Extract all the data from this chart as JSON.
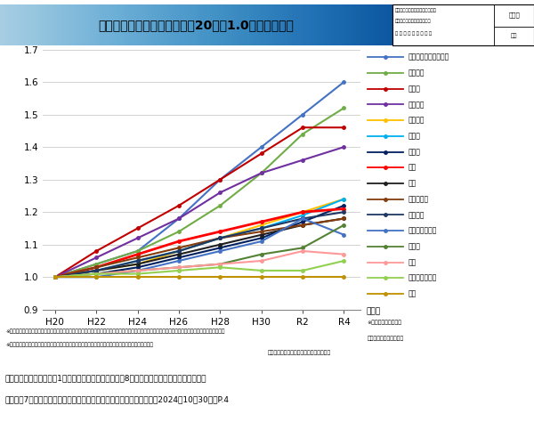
{
  "title": "診療科別医師数の推移（平成20年を1.0とした場合）",
  "x_labels": [
    "H20",
    "H22",
    "H24",
    "H26",
    "H28",
    "H30",
    "R2",
    "R4"
  ],
  "x_values": [
    0,
    1,
    2,
    3,
    4,
    5,
    6,
    7
  ],
  "ylim": [
    0.9,
    1.7
  ],
  "yticks": [
    0.9,
    1.0,
    1.1,
    1.2,
    1.3,
    1.4,
    1.5,
    1.6,
    1.7
  ],
  "series": [
    {
      "name": "リハビリテーション科",
      "color": "#4472C4",
      "lw": 1.5,
      "values": [
        1.0,
        1.04,
        1.08,
        1.18,
        1.3,
        1.4,
        1.5,
        1.6
      ]
    },
    {
      "name": "形成外科",
      "color": "#70AD47",
      "lw": 1.5,
      "values": [
        1.0,
        1.04,
        1.08,
        1.14,
        1.22,
        1.32,
        1.44,
        1.52
      ]
    },
    {
      "name": "麻酔科",
      "color": "#C00000",
      "lw": 1.5,
      "values": [
        1.0,
        1.08,
        1.15,
        1.22,
        1.3,
        1.38,
        1.46,
        1.46
      ]
    },
    {
      "name": "放射線科",
      "color": "#7030A0",
      "lw": 1.5,
      "values": [
        1.0,
        1.06,
        1.12,
        1.18,
        1.26,
        1.32,
        1.36,
        1.4
      ]
    },
    {
      "name": "泌尿器科",
      "color": "#FFC000",
      "lw": 1.5,
      "values": [
        1.0,
        1.02,
        1.04,
        1.08,
        1.12,
        1.16,
        1.2,
        1.24
      ]
    },
    {
      "name": "精神科",
      "color": "#00B0F0",
      "lw": 1.5,
      "values": [
        1.0,
        1.02,
        1.05,
        1.08,
        1.12,
        1.15,
        1.19,
        1.24
      ]
    },
    {
      "name": "皮膚科",
      "color": "#002060",
      "lw": 1.5,
      "values": [
        1.0,
        1.01,
        1.03,
        1.06,
        1.09,
        1.12,
        1.17,
        1.22
      ]
    },
    {
      "name": "総数",
      "color": "#FF0000",
      "lw": 2.0,
      "values": [
        1.0,
        1.03,
        1.07,
        1.11,
        1.14,
        1.17,
        1.2,
        1.21
      ]
    },
    {
      "name": "内科",
      "color": "#1F1F1F",
      "lw": 1.5,
      "values": [
        1.0,
        1.02,
        1.04,
        1.07,
        1.1,
        1.13,
        1.16,
        1.18
      ]
    },
    {
      "name": "脳神経外科",
      "color": "#843C0C",
      "lw": 1.5,
      "values": [
        1.0,
        1.03,
        1.06,
        1.09,
        1.12,
        1.14,
        1.16,
        1.18
      ]
    },
    {
      "name": "整形外科",
      "color": "#1F3864",
      "lw": 1.5,
      "values": [
        1.0,
        1.02,
        1.05,
        1.08,
        1.12,
        1.15,
        1.18,
        1.2
      ]
    },
    {
      "name": "産科・産婦人科",
      "color": "#4472C4",
      "lw": 1.5,
      "values": [
        1.0,
        1.0,
        1.02,
        1.05,
        1.08,
        1.11,
        1.18,
        1.13
      ]
    },
    {
      "name": "小児科",
      "color": "#548235",
      "lw": 1.5,
      "values": [
        1.0,
        1.01,
        1.02,
        1.03,
        1.04,
        1.07,
        1.09,
        1.16
      ]
    },
    {
      "name": "眼科",
      "color": "#FF9999",
      "lw": 1.5,
      "values": [
        1.0,
        1.01,
        1.02,
        1.03,
        1.04,
        1.05,
        1.08,
        1.07
      ]
    },
    {
      "name": "耳鼻いんこう科",
      "color": "#92D050",
      "lw": 1.5,
      "values": [
        1.0,
        1.01,
        1.01,
        1.02,
        1.03,
        1.02,
        1.02,
        1.05
      ]
    },
    {
      "name": "外科",
      "color": "#BF9000",
      "lw": 1.5,
      "values": [
        1.0,
        1.0,
        1.0,
        1.0,
        1.0,
        1.0,
        1.0,
        1.0
      ]
    }
  ],
  "footnote1": "※内科：内科、呼吸器内科、循環器内科、消化器内科、腎臓内科、脳神経内科、糖尿病内科、血液内科、アレルギー科、リウマチ科、感染症内科、心療内科",
  "footnote2": "※外科：外科、呼吸器外科、心臓血管外科、乳腺外科、気管食道外科、消化器外科、肛門外科、小児外科",
  "footnote3": "出典：医師・歯科医師・薬剤師調査、統計",
  "source_line1": "出典：厚生労働省「資料1　今後の医師偏在対策と令和8年度医学部臨時定員に係る方針につ",
  "source_line2": "いて」第7回医師養成過程を通じた医師の偏在対策等に関する検討会（2024年10月30日）P.4",
  "right_note_line1": "※主たる診療科として",
  "right_note_line2": "選択された診療科を集計",
  "topright_line1": "第１回医師養成過程を通じた医師",
  "topright_line2": "の偏在対策等に関する検討会",
  "topright_line3": "令 和 ６ 年 １ 月 ２ ９ 日",
  "topright_label": "資料１",
  "topright_sublabel": "改編"
}
